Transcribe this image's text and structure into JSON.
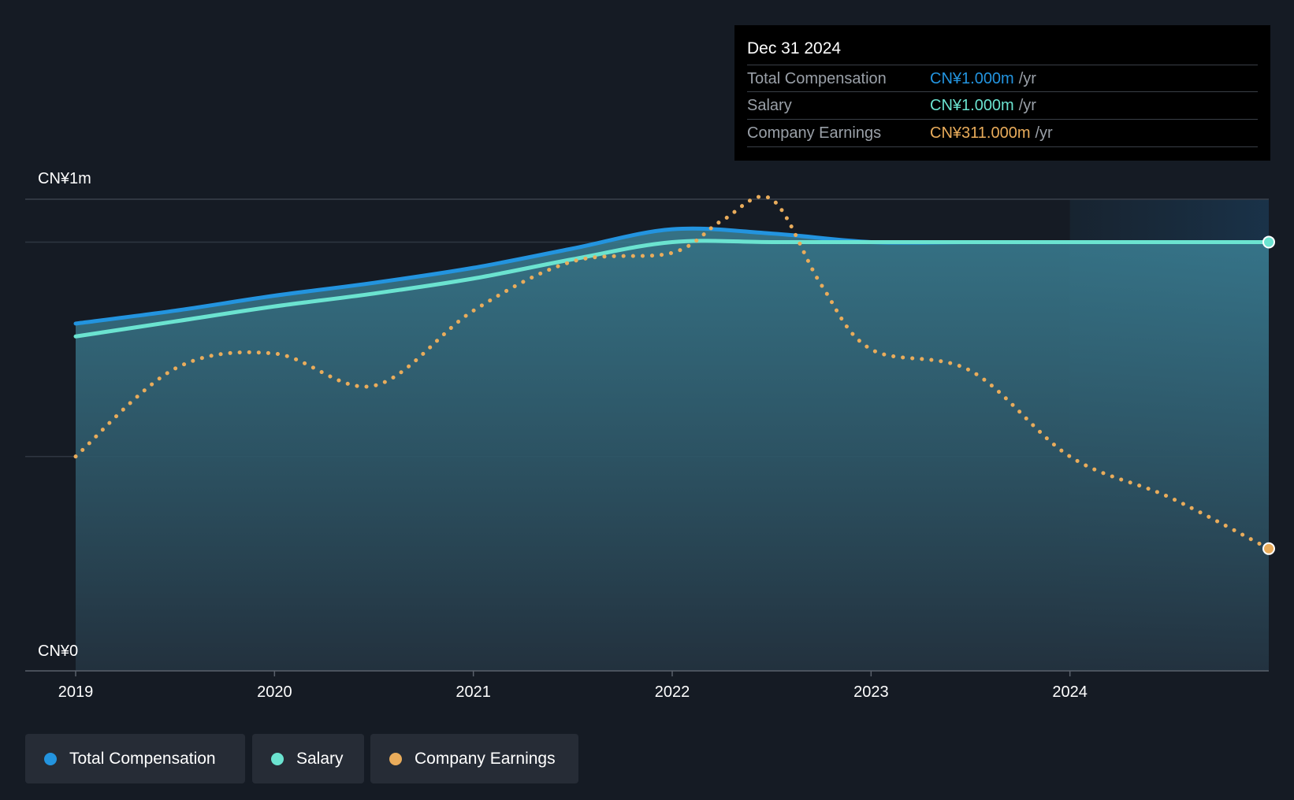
{
  "tooltip": {
    "date": "Dec 31 2024",
    "rows": [
      {
        "label": "Total Compensation",
        "value": "CN¥1.000m",
        "unit": "/yr"
      },
      {
        "label": "Salary",
        "value": "CN¥1.000m",
        "unit": "/yr"
      },
      {
        "label": "Company Earnings",
        "value": "CN¥311.000m",
        "unit": "/yr"
      }
    ]
  },
  "legend": [
    {
      "label": "Total Compensation",
      "color": "#2394df"
    },
    {
      "label": "Salary",
      "color": "#6be3d0"
    },
    {
      "label": "Company Earnings",
      "color": "#e9ac5b"
    }
  ],
  "chart_data": {
    "type": "area",
    "y_axis_labels": [
      "CN¥1m",
      "CN¥0"
    ],
    "ylim": [
      0,
      1.1
    ],
    "xlim": [
      2019,
      2025
    ],
    "x_ticks": [
      2019,
      2020,
      2021,
      2022,
      2023,
      2024
    ],
    "x_tick_labels": [
      "2019",
      "2020",
      "2021",
      "2022",
      "2023",
      "2024"
    ],
    "gridlines_y": [
      0.5,
      1.0
    ],
    "series": [
      {
        "name": "Total Compensation",
        "color": "#2394df",
        "style": "solid",
        "filled": true,
        "x": [
          2019,
          2019.5,
          2020,
          2020.5,
          2021,
          2021.5,
          2022,
          2022.5,
          2023,
          2023.5,
          2024,
          2024.5,
          2025
        ],
        "values": [
          0.81,
          0.84,
          0.875,
          0.905,
          0.94,
          0.985,
          1.03,
          1.02,
          1.0,
          1.0,
          1.0,
          1.0,
          1.0
        ]
      },
      {
        "name": "Salary",
        "color": "#6be3d0",
        "style": "solid",
        "filled": false,
        "x": [
          2019,
          2019.5,
          2020,
          2020.5,
          2021,
          2021.5,
          2022,
          2022.5,
          2023,
          2023.5,
          2024,
          2024.5,
          2025
        ],
        "values": [
          0.78,
          0.815,
          0.85,
          0.88,
          0.915,
          0.96,
          1.0,
          1.0,
          1.0,
          1.0,
          1.0,
          1.0,
          1.0
        ]
      },
      {
        "name": "Company Earnings",
        "color": "#e9ac5b",
        "style": "dotted",
        "filled": false,
        "x": [
          2019,
          2019.5,
          2020,
          2020.5,
          2021,
          2021.5,
          2022,
          2022.25,
          2022.5,
          2022.75,
          2023,
          2023.5,
          2024,
          2024.5,
          2025
        ],
        "values": [
          0.5,
          0.705,
          0.74,
          0.665,
          0.84,
          0.955,
          0.975,
          1.05,
          1.1,
          0.9,
          0.75,
          0.7,
          0.5,
          0.405,
          0.285
        ]
      }
    ]
  }
}
